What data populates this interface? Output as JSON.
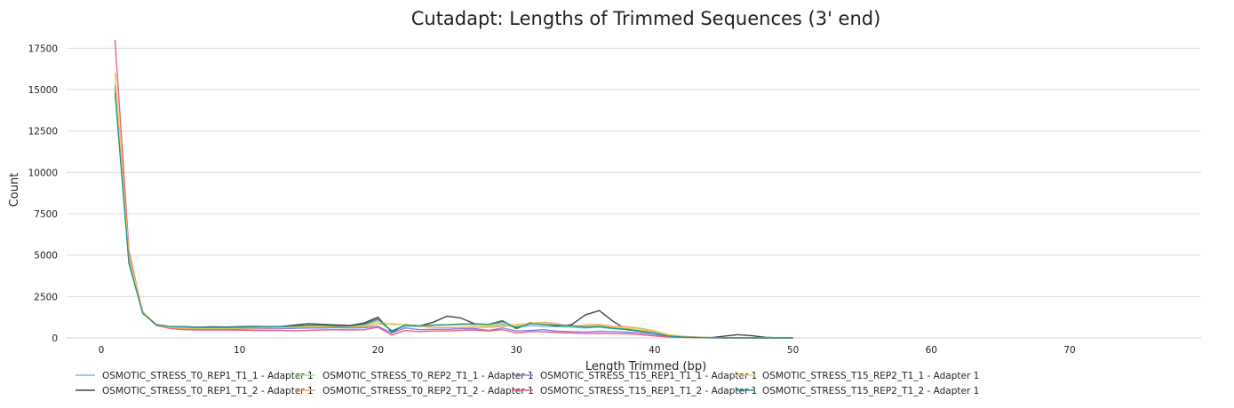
{
  "chart_data": {
    "type": "line",
    "title": "Cutadapt: Lengths of Trimmed Sequences (3' end)",
    "xlabel": "Length Trimmed (bp)",
    "ylabel": "Count",
    "xlim": [
      -2.5,
      79.5
    ],
    "ylim": [
      0,
      18000
    ],
    "xticks": [
      0,
      10,
      20,
      30,
      40,
      50,
      60,
      70
    ],
    "yticks": [
      0,
      2500,
      5000,
      7500,
      10000,
      12500,
      15000,
      17500
    ],
    "grid": "horizontal",
    "legend": "bottom",
    "x": [
      1,
      2,
      3,
      4,
      5,
      6,
      7,
      8,
      9,
      10,
      11,
      12,
      13,
      14,
      15,
      16,
      17,
      18,
      19,
      20,
      21,
      22,
      23,
      24,
      25,
      26,
      27,
      28,
      29,
      30,
      31,
      32,
      33,
      34,
      35,
      36,
      37,
      38,
      39,
      40,
      41,
      42,
      43,
      44,
      45,
      46,
      47,
      48,
      49,
      50
    ],
    "series": [
      {
        "name": "OSMOTIC_STRESS_T0_REP1_T1_1 - Adapter 1",
        "color": "#7cb5ec",
        "values": [
          15200,
          4700,
          1500,
          800,
          650,
          620,
          600,
          620,
          610,
          620,
          630,
          640,
          650,
          700,
          750,
          730,
          700,
          690,
          750,
          1100,
          400,
          700,
          680,
          750,
          780,
          800,
          780,
          720,
          800,
          650,
          750,
          700,
          680,
          650,
          600,
          650,
          560,
          500,
          420,
          350,
          150,
          80,
          50,
          20,
          10,
          5,
          3,
          2,
          1,
          0
        ]
      },
      {
        "name": "OSMOTIC_STRESS_T0_REP1_T1_2 - Adapter 1",
        "color": "#434348",
        "values": [
          15000,
          4600,
          1500,
          800,
          680,
          680,
          650,
          670,
          660,
          680,
          690,
          680,
          690,
          780,
          860,
          820,
          780,
          760,
          900,
          1250,
          350,
          800,
          720,
          950,
          1320,
          1200,
          850,
          800,
          1000,
          620,
          920,
          820,
          720,
          800,
          1400,
          1650,
          1000,
          500,
          400,
          300,
          100,
          60,
          30,
          10,
          100,
          200,
          140,
          40,
          10,
          0
        ]
      },
      {
        "name": "OSMOTIC_STRESS_T0_REP2_T1_1 - Adapter 1",
        "color": "#90ed7d",
        "values": [
          15100,
          4800,
          1550,
          780,
          640,
          610,
          600,
          610,
          600,
          610,
          620,
          630,
          650,
          690,
          720,
          710,
          700,
          700,
          720,
          1000,
          450,
          750,
          700,
          760,
          790,
          820,
          800,
          760,
          900,
          700,
          850,
          880,
          760,
          700,
          720,
          760,
          600,
          540,
          420,
          300,
          140,
          70,
          40,
          15,
          8,
          4,
          2,
          1,
          0,
          0
        ]
      },
      {
        "name": "OSMOTIC_STRESS_T0_REP2_T1_2 - Adapter 1",
        "color": "#f7a35c",
        "values": [
          16000,
          5100,
          1600,
          780,
          580,
          560,
          550,
          560,
          560,
          560,
          560,
          570,
          570,
          600,
          620,
          630,
          640,
          640,
          680,
          850,
          850,
          800,
          700,
          640,
          620,
          640,
          660,
          640,
          700,
          800,
          880,
          950,
          850,
          700,
          780,
          820,
          700,
          680,
          580,
          420,
          200,
          100,
          50,
          20,
          10,
          5,
          3,
          2,
          1,
          0
        ]
      },
      {
        "name": "OSMOTIC_STRESS_T15_REP1_T1_1 - Adapter 1",
        "color": "#8085e9",
        "values": [
          15300,
          4900,
          1550,
          760,
          600,
          560,
          550,
          540,
          540,
          540,
          550,
          560,
          560,
          580,
          600,
          600,
          620,
          600,
          620,
          700,
          300,
          600,
          500,
          520,
          520,
          560,
          560,
          450,
          600,
          420,
          450,
          500,
          400,
          380,
          360,
          400,
          380,
          350,
          300,
          200,
          100,
          60,
          30,
          10,
          5,
          3,
          2,
          1,
          0,
          0
        ]
      },
      {
        "name": "OSMOTIC_STRESS_T15_REP1_T1_2 - Adapter 1",
        "color": "#f15c80",
        "values": [
          18000,
          5300,
          1500,
          750,
          560,
          500,
          480,
          480,
          480,
          470,
          450,
          450,
          450,
          440,
          460,
          480,
          500,
          480,
          500,
          650,
          180,
          450,
          380,
          420,
          420,
          460,
          480,
          420,
          500,
          300,
          380,
          380,
          320,
          300,
          260,
          280,
          260,
          250,
          200,
          120,
          60,
          30,
          15,
          8,
          4,
          2,
          1,
          0,
          0,
          0
        ]
      },
      {
        "name": "OSMOTIC_STRESS_T15_REP2_T1_1 - Adapter 1",
        "color": "#e4d354",
        "values": [
          15800,
          5000,
          1580,
          790,
          620,
          590,
          580,
          590,
          580,
          590,
          600,
          610,
          620,
          660,
          700,
          700,
          700,
          690,
          730,
          1000,
          800,
          820,
          720,
          760,
          780,
          800,
          800,
          700,
          880,
          760,
          900,
          900,
          780,
          700,
          700,
          780,
          640,
          600,
          500,
          380,
          180,
          90,
          40,
          15,
          8,
          4,
          2,
          1,
          0,
          0
        ]
      },
      {
        "name": "OSMOTIC_STRESS_T15_REP2_T1_2 - Adapter 1",
        "color": "#2b908f",
        "values": [
          14800,
          4500,
          1480,
          790,
          680,
          670,
          630,
          650,
          640,
          650,
          660,
          670,
          680,
          720,
          760,
          760,
          720,
          720,
          820,
          1150,
          420,
          780,
          740,
          780,
          800,
          840,
          850,
          820,
          1050,
          550,
          880,
          800,
          760,
          740,
          650,
          700,
          580,
          520,
          400,
          300,
          120,
          60,
          30,
          10,
          5,
          3,
          2,
          1,
          0,
          0
        ]
      }
    ]
  }
}
